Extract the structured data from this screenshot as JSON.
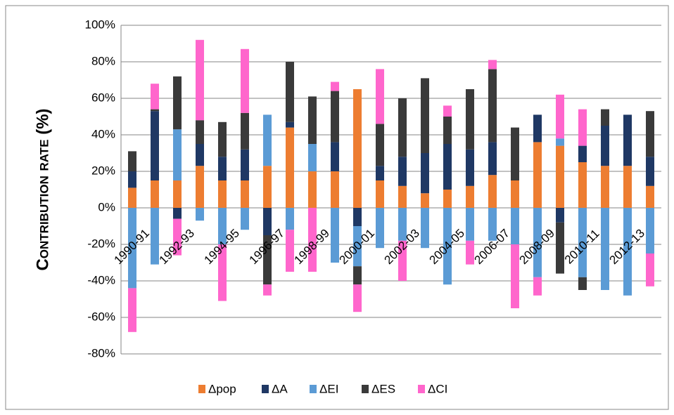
{
  "chart_data": {
    "type": "bar",
    "stacked": true,
    "y_label": "Contribution rate (%)",
    "categories": [
      "1990-91",
      null,
      "1992-93",
      null,
      "1994-95",
      null,
      "1996-97",
      null,
      "1998-99",
      null,
      "2000-01",
      null,
      "2002-03",
      null,
      "2004-05",
      null,
      "2006-07",
      null,
      "2008-09",
      null,
      "2010-11",
      null,
      "2012-13",
      null
    ],
    "series": [
      {
        "name": "Δpop",
        "color": "#ed7d31",
        "values": [
          11,
          15,
          15,
          23,
          15,
          15,
          23,
          44,
          20,
          20,
          65,
          15,
          12,
          8,
          10,
          12,
          18,
          15,
          36,
          34,
          25,
          23,
          23,
          12
        ]
      },
      {
        "name": "ΔA",
        "color": "#1f3864",
        "values": [
          9,
          38,
          -6,
          12,
          13,
          17,
          -15,
          3,
          0,
          16,
          -10,
          8,
          16,
          22,
          25,
          20,
          18,
          0,
          15,
          -8,
          9,
          22,
          28,
          16
        ]
      },
      {
        "name": "ΔEI",
        "color": "#5b9bd5",
        "values": [
          -44,
          -31,
          28,
          -7,
          -20,
          -12,
          28,
          -12,
          15,
          -30,
          -22,
          -22,
          -18,
          -22,
          -42,
          -18,
          -18,
          -20,
          -38,
          4,
          -38,
          -45,
          -48,
          -25
        ]
      },
      {
        "name": "ΔES",
        "color": "#3a3a3a",
        "values": [
          11,
          1,
          29,
          13,
          19,
          20,
          -27,
          33,
          26,
          28,
          -10,
          23,
          32,
          41,
          15,
          33,
          40,
          29,
          0,
          -28,
          -7,
          9,
          0,
          25
        ]
      },
      {
        "name": "ΔCI",
        "color": "#ff66cc",
        "values": [
          -24,
          14,
          -20,
          44,
          -31,
          35,
          -6,
          -23,
          -35,
          5,
          -15,
          30,
          -22,
          0,
          6,
          -13,
          5,
          -35,
          -10,
          24,
          20,
          0,
          0,
          -18
        ]
      }
    ],
    "ylim": [
      -80,
      100
    ],
    "yticks": [
      {
        "value": -80,
        "label": "-80%"
      },
      {
        "value": -60,
        "label": "-60%"
      },
      {
        "value": -40,
        "label": "-40%"
      },
      {
        "value": -20,
        "label": "-20%"
      },
      {
        "value": 0,
        "label": "0%"
      },
      {
        "value": 20,
        "label": "20%"
      },
      {
        "value": 40,
        "label": "40%"
      },
      {
        "value": 60,
        "label": "60%"
      },
      {
        "value": 80,
        "label": "80%"
      },
      {
        "value": 100,
        "label": "100%"
      }
    ],
    "grid": true,
    "legend": "bottom"
  }
}
